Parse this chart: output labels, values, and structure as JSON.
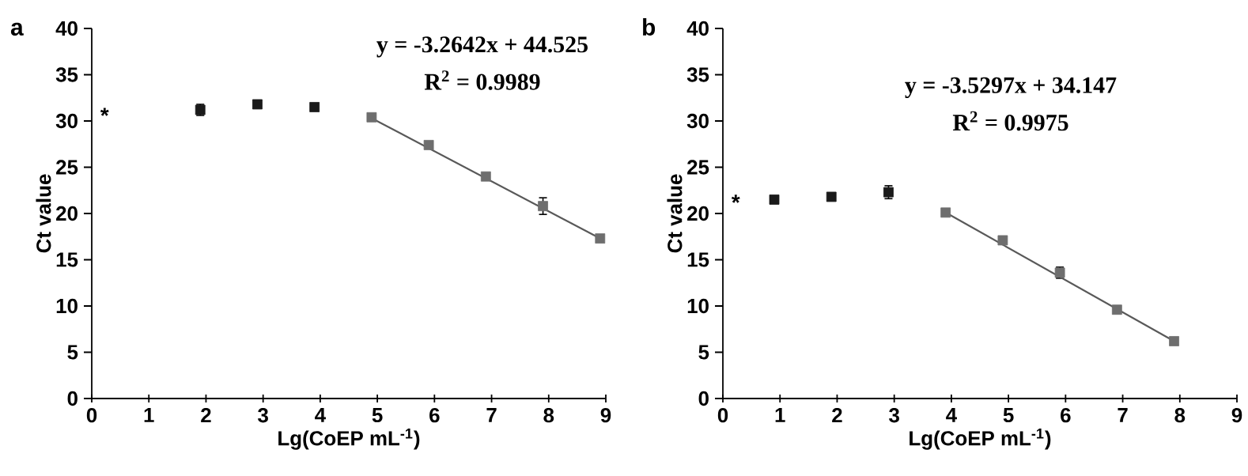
{
  "chart_data": [
    {
      "type": "scatter",
      "title": "a",
      "xlabel": "Lg(CoEP mL$^{-1}$)",
      "ylabel": "Ct value",
      "marker": "square",
      "xlim": [
        0,
        9
      ],
      "ylim": [
        0,
        40
      ],
      "xticks": [
        0,
        1,
        2,
        3,
        4,
        5,
        6,
        7,
        8,
        9
      ],
      "yticks": [
        0,
        5,
        10,
        15,
        20,
        25,
        30,
        35,
        40
      ],
      "annotations": [
        "*",
        "y = -3.2642x + 44.525",
        "R$^{2}$ = 0.9989"
      ],
      "series": [
        {
          "color": "#1a1a1a",
          "x": [
            1.9,
            2.9,
            3.9
          ],
          "values": [
            31.2,
            31.8,
            31.5
          ],
          "errors": [
            0.6,
            null,
            null
          ]
        },
        {
          "color": "#6e6e6e",
          "x": [
            4.9,
            5.9,
            6.9,
            7.9,
            8.9
          ],
          "values": [
            30.4,
            27.4,
            24.0,
            20.8,
            17.3
          ],
          "errors": [
            null,
            null,
            null,
            0.9,
            null
          ]
        },
        {
          "type": "line",
          "marker": "none",
          "color": "#595959",
          "x": [
            4.9,
            8.9
          ],
          "values": [
            30.3,
            17.3
          ]
        }
      ]
    },
    {
      "type": "scatter",
      "title": "b",
      "xlabel": "Lg(CoEP mL$^{-1}$)",
      "ylabel": "Ct value",
      "marker": "square",
      "xlim": [
        0,
        9
      ],
      "ylim": [
        0,
        40
      ],
      "xticks": [
        0,
        1,
        2,
        3,
        4,
        5,
        6,
        7,
        8,
        9
      ],
      "yticks": [
        0,
        5,
        10,
        15,
        20,
        25,
        30,
        35,
        40
      ],
      "annotations": [
        "*",
        "y = -3.5297x + 34.147",
        "R$^{2}$ = 0.9975"
      ],
      "series": [
        {
          "color": "#1a1a1a",
          "x": [
            0.9,
            1.9,
            2.9
          ],
          "values": [
            21.5,
            21.8,
            22.3
          ],
          "errors": [
            null,
            null,
            0.7
          ]
        },
        {
          "color": "#6e6e6e",
          "x": [
            3.9,
            4.9,
            5.9,
            6.9,
            7.9
          ],
          "values": [
            20.1,
            17.1,
            13.6,
            9.6,
            6.2
          ],
          "errors": [
            null,
            null,
            0.6,
            null,
            null
          ]
        },
        {
          "type": "line",
          "marker": "none",
          "color": "#595959",
          "x": [
            3.9,
            7.9
          ],
          "values": [
            20.1,
            6.2
          ]
        }
      ]
    }
  ]
}
